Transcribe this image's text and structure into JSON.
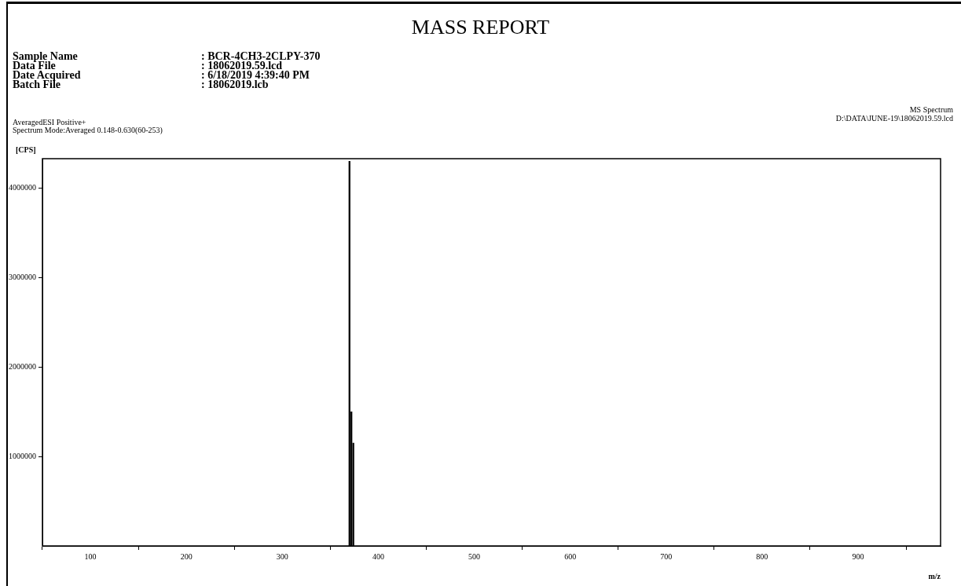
{
  "chart_data": {
    "type": "bar",
    "title": "MASS REPORT",
    "xlabel": "m/z",
    "ylabel": "[CPS]",
    "annotations": [
      "Sample Name",
      ": BCR-4CH3-2CLPY-370",
      "Data File",
      ": 18062019.59.lcd",
      "Date Acquired",
      ": 6/18/2019 4:39:40 PM",
      "Batch File",
      ": 18062019.lcb",
      "AveragedESI Positive+",
      "Spectrum Mode:Averaged 0.148-0.630(60-253)",
      "MS Spectrum",
      "D:\\DATA\\JUNE-19\\18062019.59.lcd"
    ],
    "x": [
      370,
      372,
      374
    ],
    "values": [
      4300000,
      1500000,
      1150000
    ],
    "color": "#000000",
    "grid": false,
    "xlim": [
      50,
      986
    ],
    "xticks": [
      100,
      200,
      300,
      400,
      500,
      600,
      700,
      800,
      900
    ],
    "ylim": [
      0,
      4330000
    ],
    "yticks": [
      1000000,
      2000000,
      3000000,
      4000000
    ],
    "legend": false
  }
}
